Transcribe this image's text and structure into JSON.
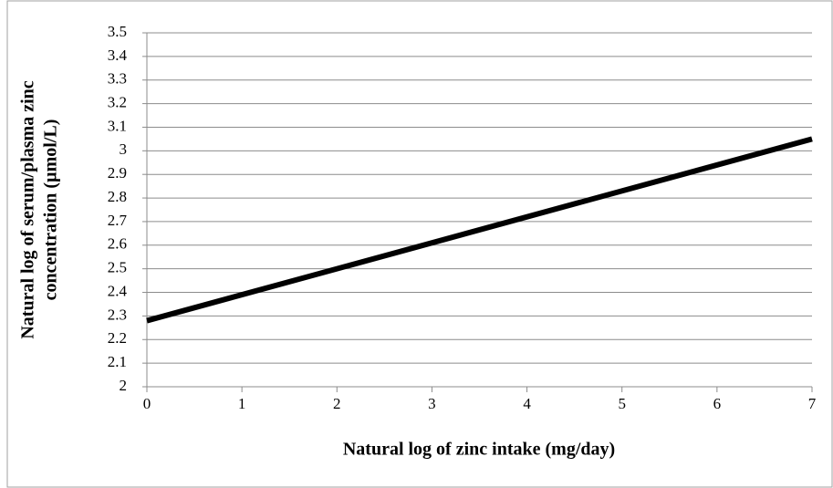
{
  "chart_data": {
    "type": "line",
    "x_label": "Natural log of zinc intake (mg/day)",
    "y_label": [
      "Natural log of serum/plasma zinc",
      "concentration (µmol/L)"
    ],
    "x": [
      0,
      7
    ],
    "series": [
      {
        "name": null,
        "color": "#000000",
        "values": [
          2.28,
          3.05
        ]
      }
    ],
    "xlim": [
      0,
      7
    ],
    "xticks": [
      0,
      1,
      2,
      3,
      4,
      5,
      6,
      7
    ],
    "ylim": [
      2,
      3.5
    ],
    "yticks": [
      2,
      2.1,
      2.2,
      2.3,
      2.4,
      2.5,
      2.6,
      2.7,
      2.8,
      2.9,
      3,
      3.1,
      3.2,
      3.3,
      3.4,
      3.5
    ],
    "grid": true
  }
}
